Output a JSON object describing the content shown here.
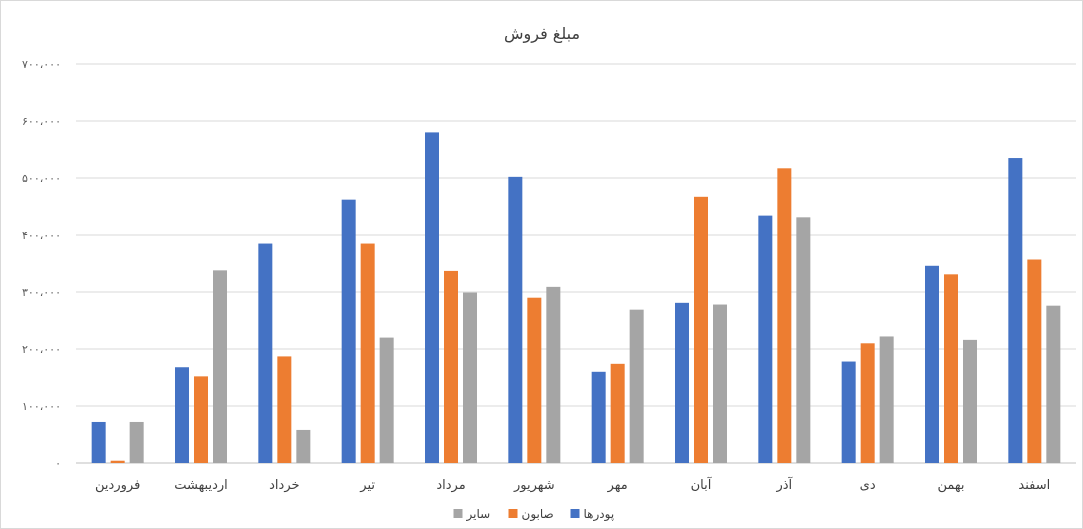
{
  "chart_data": {
    "type": "bar",
    "title": "مبلغ فروش",
    "categories": [
      "فروردین",
      "اردیبهشت",
      "خرداد",
      "تیر",
      "مرداد",
      "شهریور",
      "مهر",
      "آبان",
      "آذر",
      "دی",
      "بهمن",
      "اسفند"
    ],
    "series": [
      {
        "name": "پودرها",
        "color": "#4472C4",
        "values": [
          72000,
          168000,
          385000,
          462000,
          580000,
          502000,
          160000,
          281000,
          434000,
          178000,
          346000,
          535000
        ]
      },
      {
        "name": "صابون",
        "color": "#ED7D31",
        "values": [
          4000,
          152000,
          187000,
          385000,
          337000,
          290000,
          174000,
          467000,
          517000,
          210000,
          331000,
          357000
        ]
      },
      {
        "name": "سایر",
        "color": "#A5A5A5",
        "values": [
          72000,
          338000,
          58000,
          220000,
          299000,
          309000,
          269000,
          278000,
          431000,
          222000,
          216000,
          276000
        ]
      }
    ],
    "ylim": [
      0,
      700000
    ],
    "yticks": [
      0,
      100000,
      200000,
      300000,
      400000,
      500000,
      600000,
      700000
    ],
    "ytick_labels": [
      "۰",
      "۱۰۰،۰۰۰",
      "۲۰۰،۰۰۰",
      "۳۰۰،۰۰۰",
      "۴۰۰،۰۰۰",
      "۵۰۰،۰۰۰",
      "۶۰۰،۰۰۰",
      "۷۰۰،۰۰۰"
    ],
    "grid": true,
    "legend_position": "bottom",
    "legend_order": [
      "سایر",
      "صابون",
      "پودرها"
    ]
  }
}
